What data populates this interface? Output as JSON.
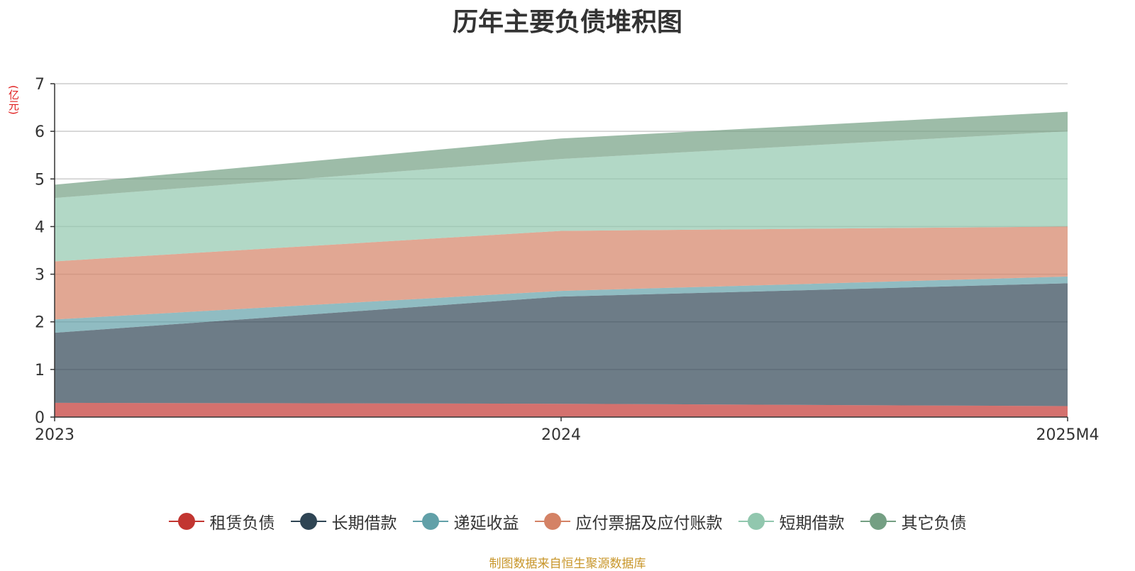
{
  "chart_data": {
    "type": "area",
    "stacked": true,
    "title": "历年主要负债堆积图",
    "y_unit": "(亿元)",
    "x": [
      "2023",
      "2024",
      "2025M4"
    ],
    "ylim": [
      0,
      7
    ],
    "yticks": [
      0,
      1,
      2,
      3,
      4,
      5,
      6,
      7
    ],
    "grid": true,
    "legend_position": "bottom",
    "series": [
      {
        "name": "租赁负债",
        "values": [
          0.3,
          0.28,
          0.23
        ],
        "color": "#c23531"
      },
      {
        "name": "长期借款",
        "values": [
          1.47,
          2.25,
          2.58
        ],
        "color": "#2f4554"
      },
      {
        "name": "递延收益",
        "values": [
          0.28,
          0.12,
          0.14
        ],
        "color": "#61a0a8"
      },
      {
        "name": "应付票据及应付账款",
        "values": [
          1.22,
          1.26,
          1.05
        ],
        "color": "#d48265"
      },
      {
        "name": "短期借款",
        "values": [
          1.33,
          1.51,
          2.0
        ],
        "color": "#91c7ae"
      },
      {
        "name": "其它负债",
        "values": [
          0.28,
          0.43,
          0.41
        ],
        "color": "#749f83"
      }
    ]
  },
  "source_note": "制图数据来自恒生聚源数据库"
}
